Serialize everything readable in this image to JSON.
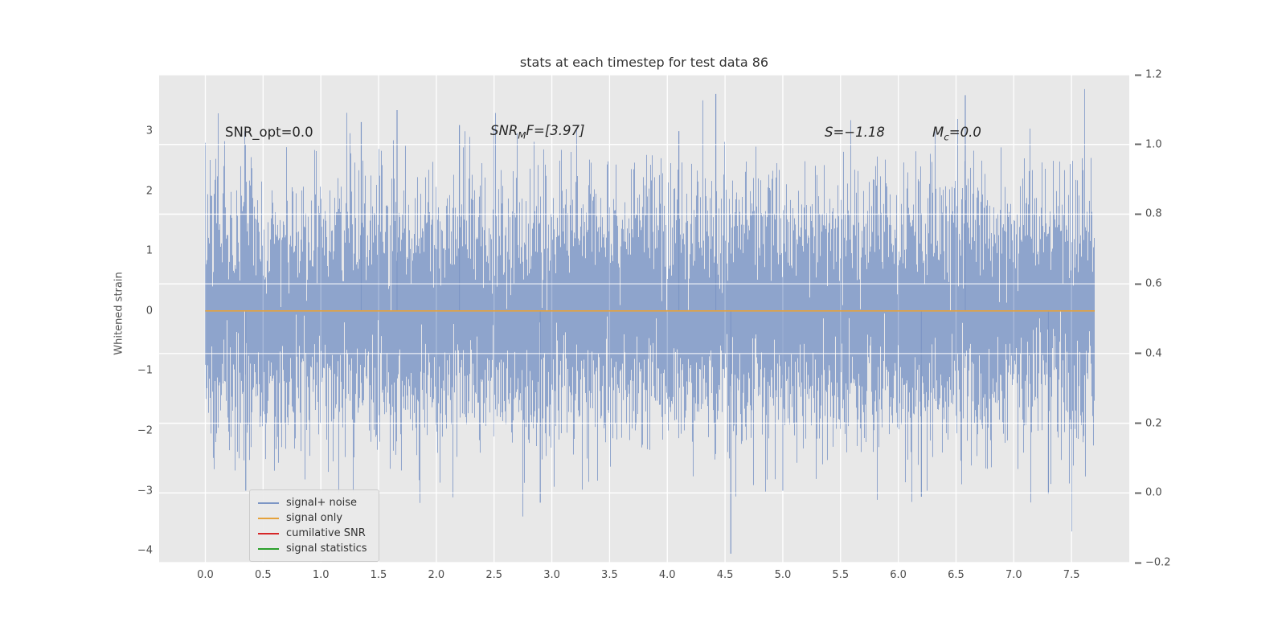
{
  "figure": {
    "title": "stats at each timestep for test data 86"
  },
  "annotations": {
    "snr_opt": "SNR_opt=0.0",
    "snr_mf_prefix": "SNR",
    "snr_mf_sub": "M",
    "snr_mf_rest": "F=[3.97]",
    "s_stat": "S=−1.18",
    "mc_prefix": "M",
    "mc_sub": "c",
    "mc_rest": "=0.0"
  },
  "legend": {
    "items": [
      {
        "label": "signal+ noise",
        "color": "#7d96c5"
      },
      {
        "label": "signal only",
        "color": "#e5a23c"
      },
      {
        "label": "cumilative SNR",
        "color": "#d62728"
      },
      {
        "label": "signal statistics",
        "color": "#2ca02c"
      }
    ]
  },
  "colors": {
    "plot_bg": "#e8e8e8",
    "grid": "#ffffff",
    "noise": "#7d96c5",
    "signal_only": "#e5a23c",
    "cumulative_snr": "#d62728",
    "signal_statistics": "#2ca02c",
    "tick_text": "#4d4d4d"
  },
  "chart_data": {
    "type": "line",
    "title": "stats at each timestep for test data 86",
    "xlabel": "",
    "ylabel_left": "Whitened strain",
    "xlim": [
      -0.4,
      8.0
    ],
    "ylim_left": [
      -4.2,
      3.94
    ],
    "ylim_right": [
      -0.2,
      1.2
    ],
    "grid": true,
    "legend_position": "lower left",
    "xtick_values": [
      0,
      0.5,
      1,
      1.5,
      2,
      2.5,
      3,
      3.5,
      4,
      4.5,
      5,
      5.5,
      6,
      6.5,
      7,
      7.5
    ],
    "xtick_labels": [
      "0.0",
      "0.5",
      "1.0",
      "1.5",
      "2.0",
      "2.5",
      "3.0",
      "3.5",
      "4.0",
      "4.5",
      "5.0",
      "5.5",
      "6.0",
      "6.5",
      "7.0",
      "7.5"
    ],
    "ytick_left_values": [
      3,
      2,
      1,
      0,
      -1,
      -2,
      -3,
      -4
    ],
    "ytick_left_labels": [
      "3",
      "2",
      "1",
      "0",
      "−1",
      "−2",
      "−3",
      "−4"
    ],
    "ytick_right_values": [
      1.2,
      1.0,
      0.8,
      0.6,
      0.4,
      0.2,
      0.0,
      -0.2
    ],
    "ytick_right_labels": [
      "1.2",
      "1.0",
      "0.8",
      "0.6",
      "0.4",
      "0.2",
      "0.0",
      "−0.2"
    ],
    "series": [
      {
        "name": "signal+ noise",
        "kind": "gaussian_noise_band",
        "axis": "left",
        "color": "#7d96c5",
        "x_range": [
          0,
          7.7
        ],
        "mean": 0,
        "std": 1.0,
        "samples_per_column": 8,
        "seed": 86,
        "observed_min": -4.05,
        "observed_max": 3.62
      },
      {
        "name": "signal only",
        "kind": "constant",
        "axis": "left",
        "color": "#e5a23c",
        "value": 0.0
      },
      {
        "name": "cumilative SNR",
        "kind": "constant",
        "axis": "left",
        "color": "#d62728",
        "value": 0.0
      },
      {
        "name": "signal statistics",
        "kind": "constant",
        "axis": "left",
        "color": "#2ca02c",
        "value": 0.0
      }
    ],
    "spikes": [
      {
        "x": 4.55,
        "y": -4.05
      },
      {
        "x": 4.42,
        "y": 3.62
      },
      {
        "x": 6.58,
        "y": 3.6
      },
      {
        "x": 1.66,
        "y": 3.35
      },
      {
        "x": 1.35,
        "y": 3.15
      },
      {
        "x": 2.2,
        "y": 3.1
      },
      {
        "x": 4.1,
        "y": 3.0
      },
      {
        "x": 2.9,
        "y": -3.2
      },
      {
        "x": 6.2,
        "y": -3.1
      },
      {
        "x": 7.3,
        "y": -3.05
      },
      {
        "x": 0.35,
        "y": -3.0
      },
      {
        "x": 5.0,
        "y": -3.0
      }
    ],
    "stat_annotations": [
      "SNR_opt=0.0",
      "SNR_MF=[3.97]",
      "S=−1.18",
      "Mc=0.0"
    ]
  }
}
